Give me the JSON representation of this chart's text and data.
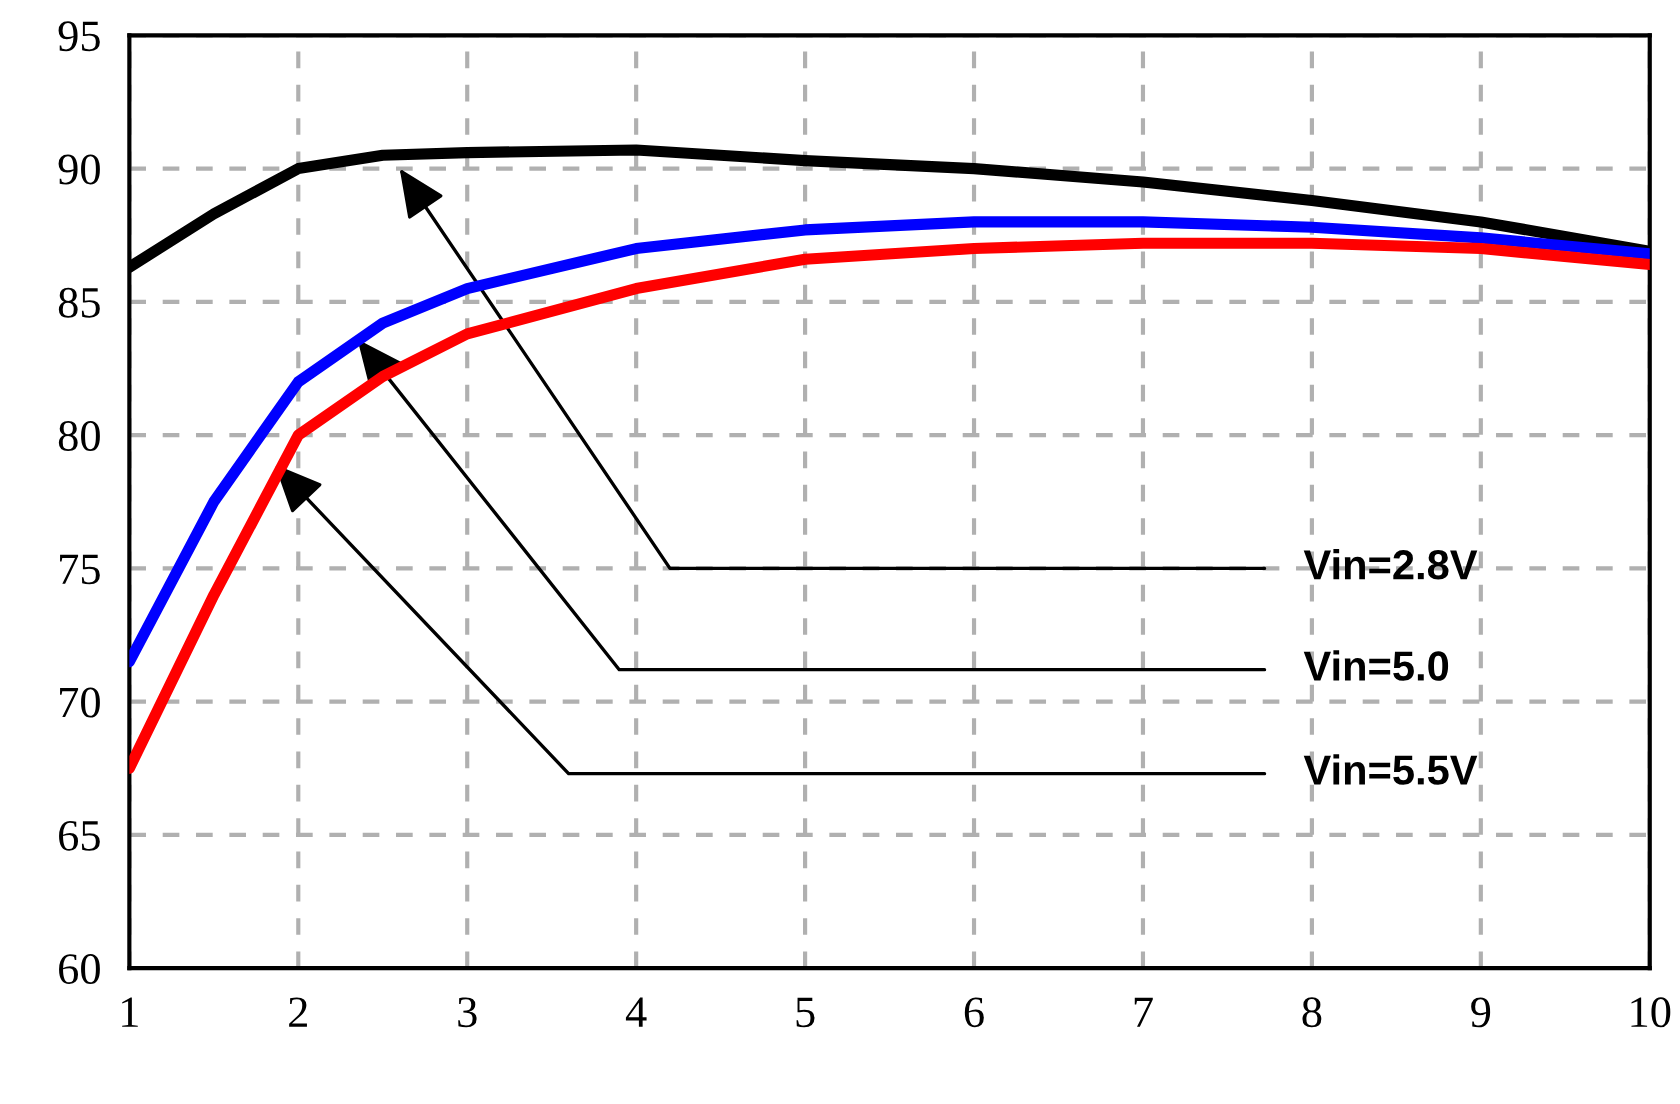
{
  "chart_data": {
    "type": "line",
    "x": [
      1,
      1.5,
      2,
      2.5,
      3,
      4,
      5,
      6,
      7,
      8,
      9,
      10
    ],
    "series": [
      {
        "color": "#000000",
        "values": [
          86.3,
          88.3,
          90.0,
          90.5,
          90.6,
          90.7,
          90.3,
          90.0,
          89.5,
          88.8,
          88.0,
          86.9
        ]
      },
      {
        "color": "#0000ff",
        "values": [
          71.5,
          77.5,
          82.0,
          84.2,
          85.5,
          87.0,
          87.7,
          88.0,
          88.0,
          87.8,
          87.4,
          86.8
        ]
      },
      {
        "color": "#ff0000",
        "values": [
          67.5,
          74.0,
          80.0,
          82.2,
          83.8,
          85.5,
          86.6,
          87.0,
          87.2,
          87.2,
          87.0,
          86.4
        ]
      }
    ],
    "annotations": [
      {
        "text": "Vin=2.8V",
        "x": 2.6,
        "y": 90.0
      },
      {
        "text": "Vin=5.0",
        "x": 2.35,
        "y": 83.6
      },
      {
        "text": "Vin=5.5V",
        "x": 1.86,
        "y": 78.9
      }
    ],
    "xlim": [
      1,
      10
    ],
    "xticks": [
      1,
      2,
      3,
      4,
      5,
      6,
      7,
      8,
      9,
      10
    ],
    "ylim": [
      60,
      95
    ],
    "yticks": [
      60,
      65,
      70,
      75,
      80,
      85,
      90,
      95
    ],
    "grid": true,
    "marker": "none",
    "line_style": "solid"
  }
}
